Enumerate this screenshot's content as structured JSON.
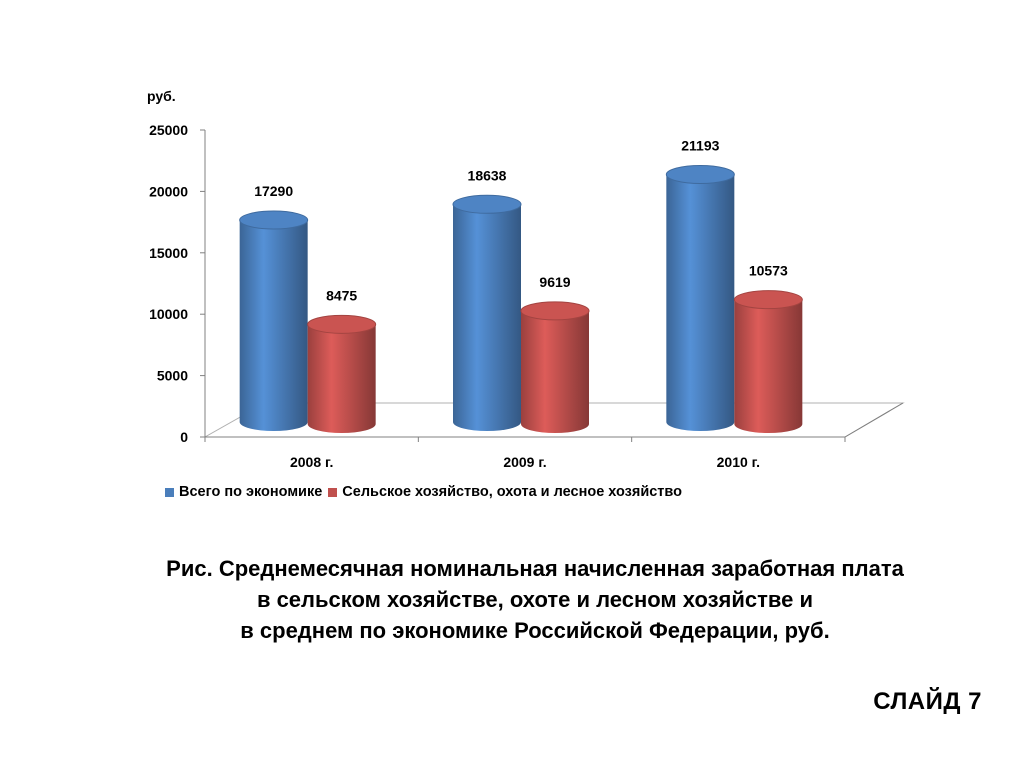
{
  "chart_data": {
    "type": "bar",
    "style": "3d-cylinder",
    "ylabel": "руб.",
    "ylim": [
      0,
      25000
    ],
    "yticks": [
      0,
      5000,
      10000,
      15000,
      20000,
      25000
    ],
    "categories": [
      "2008 г.",
      "2009 г.",
      "2010 г."
    ],
    "series": [
      {
        "name": "Всего по экономике",
        "color": "#4a7ebb",
        "values": [
          17290,
          18638,
          21193
        ]
      },
      {
        "name": "Сельское хозяйство, охота и лесное хозяйство",
        "color": "#c0504d",
        "values": [
          8475,
          9619,
          10573
        ]
      }
    ],
    "data_labels": [
      "17290",
      "8475",
      "18638",
      "9619",
      "21193",
      "10573"
    ],
    "legend_position": "bottom",
    "grid": false
  },
  "caption": {
    "line1": "Рис. Среднемесячная номинальная начисленная заработная плата",
    "line2": "в сельском хозяйстве, охоте и лесном хозяйстве и",
    "line3": "в среднем по экономике Российской Федерации, руб."
  },
  "slide_label": "СЛАЙД 7"
}
